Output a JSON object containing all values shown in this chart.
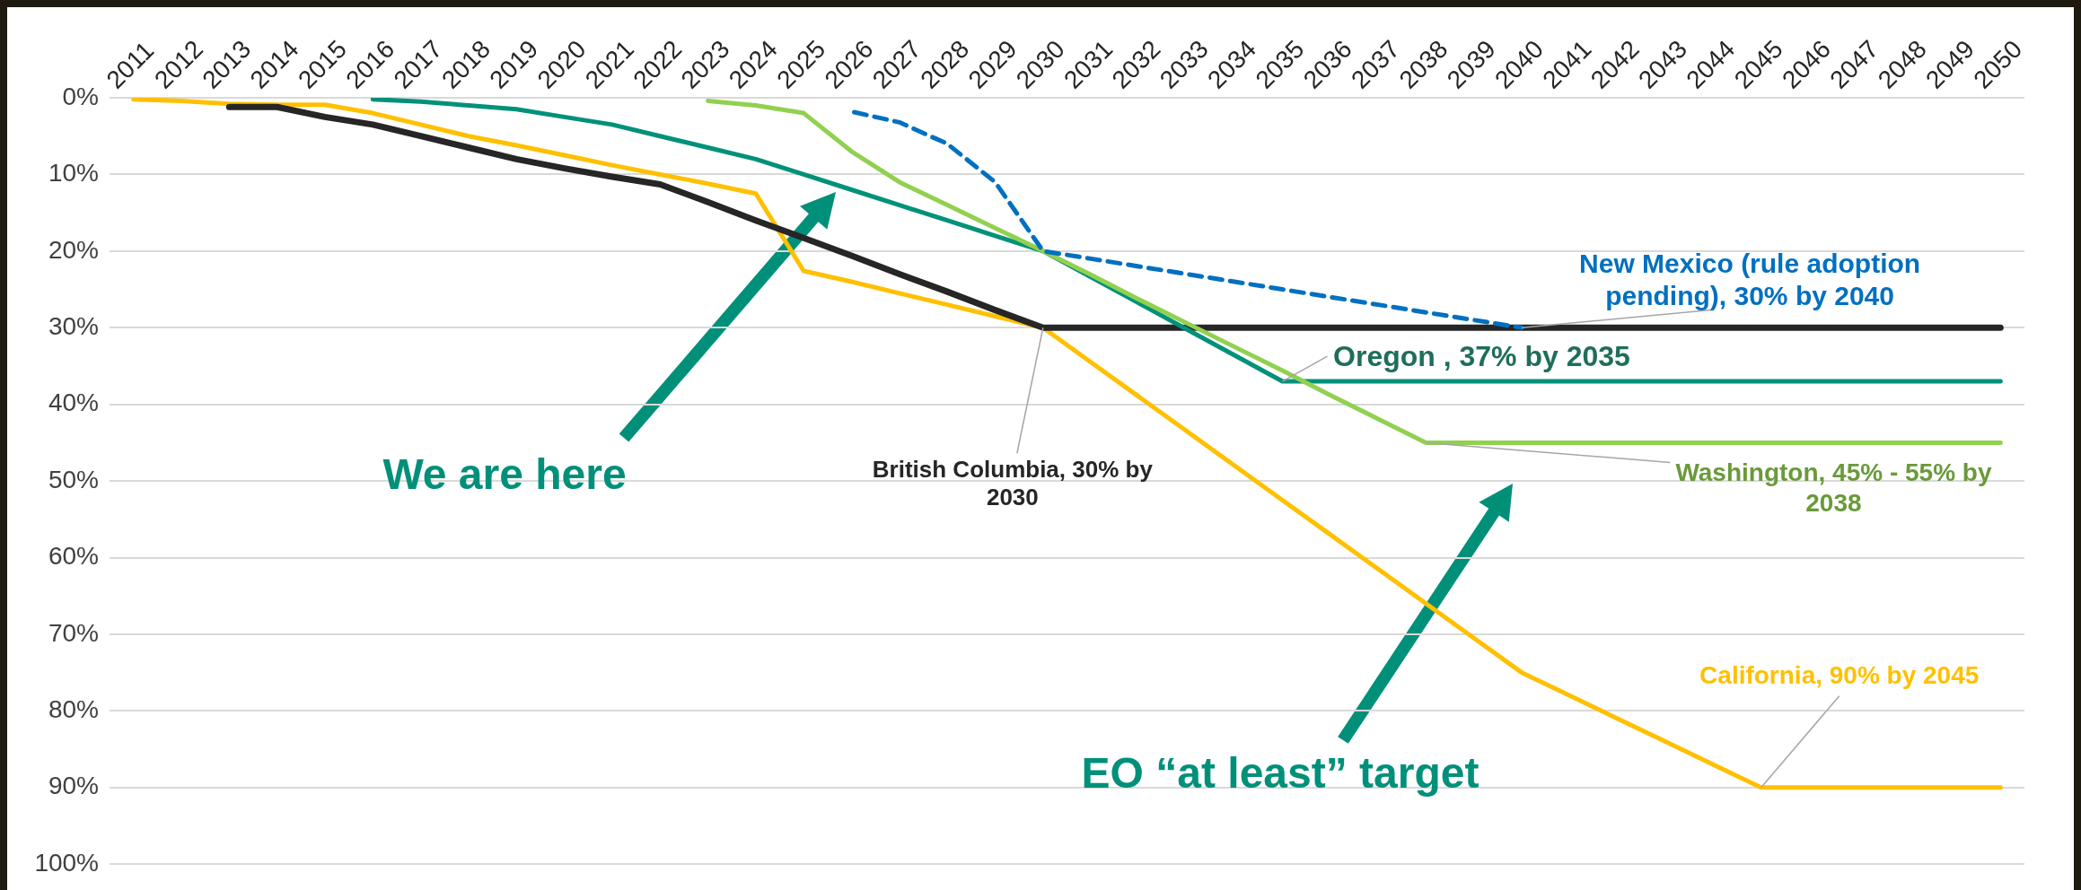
{
  "chart_data": {
    "type": "line",
    "categories": [
      "2011",
      "2012",
      "2013",
      "2014",
      "2015",
      "2016",
      "2017",
      "2018",
      "2019",
      "2020",
      "2021",
      "2022",
      "2023",
      "2024",
      "2025",
      "2026",
      "2027",
      "2028",
      "2029",
      "2030",
      "2031",
      "2032",
      "2033",
      "2034",
      "2035",
      "2036",
      "2037",
      "2038",
      "2039",
      "2040",
      "2041",
      "2042",
      "2043",
      "2044",
      "2045",
      "2046",
      "2047",
      "2048",
      "2049",
      "2050"
    ],
    "series": [
      {
        "color": "#ffc000",
        "values": [
          0.2,
          0.4,
          0.8,
          0.9,
          0.9,
          2,
          3.5,
          5,
          6.2,
          7.5,
          8.8,
          10,
          11.2,
          12.5,
          22.6,
          24,
          25.5,
          27,
          28.5,
          30,
          34.5,
          39,
          43.5,
          48,
          52.5,
          57,
          61.5,
          66,
          70.5,
          75,
          78,
          81,
          84,
          87,
          90,
          90,
          90,
          90,
          90,
          90
        ]
      },
      {
        "color": "#262626",
        "values": [
          null,
          null,
          1.2,
          1.2,
          2.5,
          3.5,
          5,
          6.5,
          8,
          9.2,
          10.3,
          11.3,
          13.6,
          16,
          18.3,
          20.6,
          23,
          25.3,
          27.7,
          30,
          30,
          30,
          30,
          30,
          30,
          30,
          30,
          30,
          30,
          30,
          30,
          30,
          30,
          30,
          30,
          30,
          30,
          30,
          30,
          30
        ]
      },
      {
        "color": "#00917a",
        "values": [
          null,
          null,
          null,
          null,
          null,
          0.2,
          0.5,
          1,
          1.5,
          2.5,
          3.5,
          5,
          6.5,
          8,
          10,
          12,
          14,
          16,
          18,
          20,
          23.4,
          26.8,
          30.2,
          33.6,
          37,
          37,
          37,
          37,
          37,
          37,
          37,
          37,
          37,
          37,
          37,
          37,
          37,
          37,
          37,
          37
        ]
      },
      {
        "color": "#92d050",
        "values": [
          null,
          null,
          null,
          null,
          null,
          null,
          null,
          null,
          null,
          null,
          null,
          null,
          0.4,
          1,
          2,
          7,
          11,
          14,
          17,
          20,
          23.1,
          26.3,
          29.4,
          32.5,
          35.6,
          38.8,
          41.9,
          45,
          45,
          45,
          45,
          45,
          45,
          45,
          45,
          45,
          45,
          45,
          45,
          45
        ]
      },
      {
        "color": "#0070c0",
        "line_style": "dashed",
        "values": [
          null,
          null,
          null,
          null,
          null,
          null,
          null,
          null,
          null,
          null,
          null,
          null,
          null,
          null,
          null,
          1.8,
          3.2,
          6,
          11,
          20,
          21,
          22,
          23,
          24,
          25,
          26,
          27,
          28,
          29,
          30,
          null,
          null,
          null,
          null,
          null,
          null,
          null,
          null,
          null,
          null
        ]
      }
    ],
    "ylim": [
      100,
      0
    ],
    "yticks": [
      {
        "value": 0,
        "label": "0%"
      },
      {
        "value": 10,
        "label": "10%"
      },
      {
        "value": 20,
        "label": "20%"
      },
      {
        "value": 30,
        "label": "30%"
      },
      {
        "value": 40,
        "label": "40%"
      },
      {
        "value": 50,
        "label": "50%"
      },
      {
        "value": 60,
        "label": "60%"
      },
      {
        "value": 70,
        "label": "70%"
      },
      {
        "value": 80,
        "label": "80%"
      },
      {
        "value": 90,
        "label": "90%"
      },
      {
        "value": 100,
        "label": "100%"
      }
    ],
    "grid": "y",
    "legend": false,
    "marker": "none",
    "line_style": "solid",
    "annotations": [
      {
        "text": "British Columbia, 30% by 2030",
        "x": "2030",
        "y": 30
      },
      {
        "text": "New Mexico (rule adoption pending), 30% by 2040",
        "x": "2040",
        "y": 30
      },
      {
        "text": "Oregon , 37% by 2035",
        "x": "2035",
        "y": 37
      },
      {
        "text": "Washington, 45% - 55% by 2038",
        "x": "2038",
        "y": 45
      },
      {
        "text": "California, 90% by 2045",
        "x": "2045",
        "y": 90
      },
      "We are here",
      "EO “at least” target"
    ]
  }
}
